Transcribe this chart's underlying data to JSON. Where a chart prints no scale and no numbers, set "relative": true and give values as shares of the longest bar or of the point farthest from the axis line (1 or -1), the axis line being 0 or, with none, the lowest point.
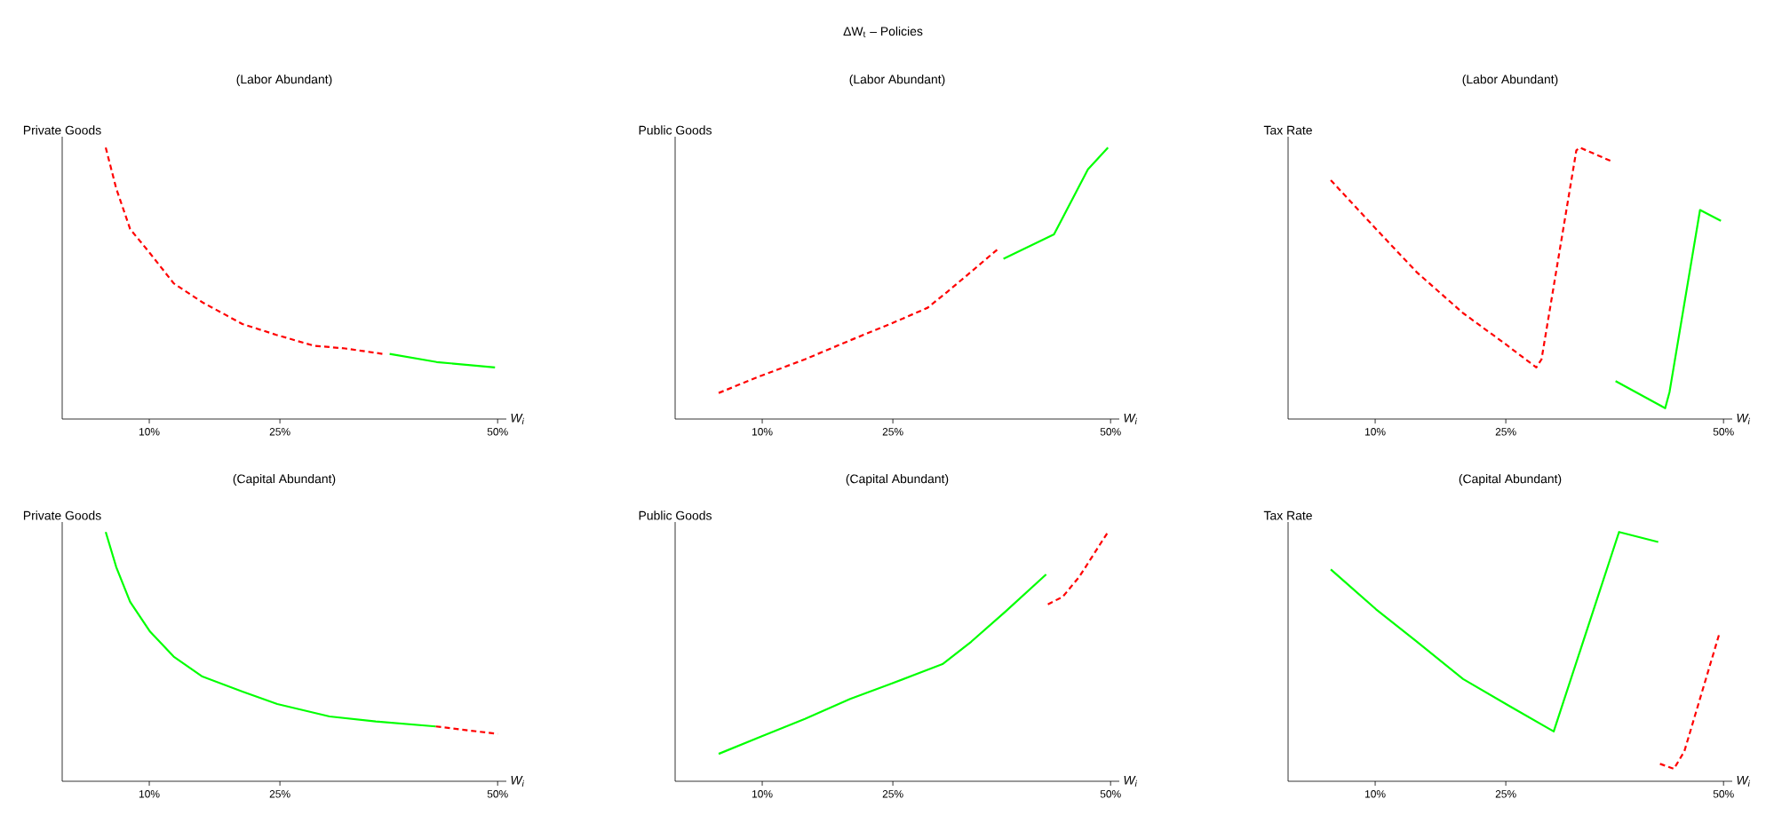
{
  "chart_data": [
    {
      "type": "line",
      "annotations": [
        "ΔW$_{t}$ – Policies"
      ],
      "title": "(Labor Abundant)",
      "ylabel": "Private Goods",
      "xlabel": "W$_{i}$",
      "relative": true,
      "xlim": [
        0,
        51
      ],
      "xticks": [
        {
          "value": 10,
          "label": "10%"
        },
        {
          "value": 25,
          "label": "25%"
        },
        {
          "value": 50,
          "label": "50%"
        }
      ],
      "series": [
        {
          "color": "#ff0000",
          "line_style": "dashed",
          "x": [
            5.0,
            6.2,
            7.8,
            10.1,
            12.8,
            16.1,
            20.7,
            24.6,
            28.9,
            32.5,
            36.8
          ],
          "values": [
            1.0,
            0.85,
            0.7,
            0.61,
            0.5,
            0.43,
            0.35,
            0.31,
            0.27,
            0.26,
            0.24
          ]
        },
        {
          "color": "#00ff00",
          "line_style": "solid",
          "x": [
            37.6,
            43.0,
            49.7
          ],
          "values": [
            0.24,
            0.21,
            0.19
          ]
        }
      ]
    },
    {
      "type": "line",
      "title": "(Labor Abundant)",
      "ylabel": "Public Goods",
      "xlabel": "W$_{i}$",
      "relative": true,
      "xlim": [
        0,
        51
      ],
      "xticks": [
        {
          "value": 10,
          "label": "10%"
        },
        {
          "value": 25,
          "label": "25%"
        },
        {
          "value": 50,
          "label": "50%"
        }
      ],
      "series": [
        {
          "color": "#ff0000",
          "line_style": "dashed",
          "x": [
            5.0,
            9.6,
            14.9,
            20.1,
            24.7,
            29.0,
            31.3,
            33.9,
            37.2
          ],
          "values": [
            0.096,
            0.156,
            0.22,
            0.29,
            0.35,
            0.41,
            0.47,
            0.54,
            0.63
          ]
        },
        {
          "color": "#00ff00",
          "line_style": "solid",
          "x": [
            37.7,
            43.5,
            47.4,
            49.7
          ],
          "values": [
            0.59,
            0.68,
            0.92,
            1.0
          ]
        }
      ]
    },
    {
      "type": "line",
      "title": "(Labor Abundant)",
      "ylabel": "Tax Rate",
      "xlabel": "W$_{i}$",
      "relative": true,
      "xlim": [
        0,
        51
      ],
      "xticks": [
        {
          "value": 10,
          "label": "10%"
        },
        {
          "value": 25,
          "label": "25%"
        },
        {
          "value": 50,
          "label": "50%"
        }
      ],
      "series": [
        {
          "color": "#ff0000",
          "line_style": "dashed",
          "x": [
            4.9,
            10.1,
            14.8,
            20.1,
            24.8,
            28.5,
            29.1,
            33.1,
            33.5,
            37.1
          ],
          "values": [
            0.88,
            0.7,
            0.54,
            0.39,
            0.28,
            0.19,
            0.22,
            0.99,
            1.0,
            0.95
          ]
        },
        {
          "color": "#00ff00",
          "line_style": "solid",
          "x": [
            37.6,
            43.3,
            43.8,
            47.3,
            49.7
          ],
          "values": [
            0.14,
            0.04,
            0.1,
            0.77,
            0.73
          ]
        }
      ]
    },
    {
      "type": "line",
      "title": "(Capital Abundant)",
      "ylabel": "Private Goods",
      "xlabel": "W$_{i}$",
      "relative": true,
      "xlim": [
        0,
        51
      ],
      "xticks": [
        {
          "value": 10,
          "label": "10%"
        },
        {
          "value": 25,
          "label": "25%"
        },
        {
          "value": 50,
          "label": "50%"
        }
      ],
      "series": [
        {
          "color": "#00ff00",
          "line_style": "solid",
          "x": [
            5.0,
            6.2,
            7.8,
            10.1,
            12.8,
            16.1,
            20.7,
            24.7,
            30.7,
            36.0,
            42.9
          ],
          "values": [
            1.0,
            0.86,
            0.72,
            0.6,
            0.5,
            0.42,
            0.36,
            0.31,
            0.26,
            0.24,
            0.22
          ]
        },
        {
          "color": "#ff0000",
          "line_style": "dashed",
          "x": [
            42.9,
            50.0
          ],
          "values": [
            0.22,
            0.19
          ]
        }
      ]
    },
    {
      "type": "line",
      "title": "(Capital Abundant)",
      "ylabel": "Public Goods",
      "xlabel": "W$_{i}$",
      "relative": true,
      "xlim": [
        0,
        51
      ],
      "xticks": [
        {
          "value": 10,
          "label": "10%"
        },
        {
          "value": 25,
          "label": "25%"
        },
        {
          "value": 50,
          "label": "50%"
        }
      ],
      "series": [
        {
          "color": "#00ff00",
          "line_style": "solid",
          "x": [
            5.0,
            9.9,
            14.9,
            20.1,
            24.7,
            30.7,
            34.0,
            37.9,
            42.6
          ],
          "values": [
            0.11,
            0.18,
            0.25,
            0.33,
            0.39,
            0.47,
            0.56,
            0.68,
            0.83
          ]
        },
        {
          "color": "#ff0000",
          "line_style": "dashed",
          "x": [
            42.8,
            44.5,
            46.4,
            49.7
          ],
          "values": [
            0.71,
            0.74,
            0.82,
            1.0
          ]
        }
      ]
    },
    {
      "type": "line",
      "title": "(Capital Abundant)",
      "ylabel": "Tax Rate",
      "xlabel": "W$_{i}$",
      "relative": true,
      "xlim": [
        0,
        51
      ],
      "xticks": [
        {
          "value": 10,
          "label": "10%"
        },
        {
          "value": 25,
          "label": "25%"
        },
        {
          "value": 50,
          "label": "50%"
        }
      ],
      "series": [
        {
          "color": "#00ff00",
          "line_style": "solid",
          "x": [
            4.9,
            10.1,
            14.8,
            20.1,
            25.5,
            30.5,
            38.0,
            42.5
          ],
          "values": [
            0.85,
            0.69,
            0.56,
            0.41,
            0.3,
            0.2,
            1.0,
            0.96
          ]
        },
        {
          "color": "#ff0000",
          "line_style": "dashed",
          "x": [
            42.7,
            44.3,
            45.5,
            49.5
          ],
          "values": [
            0.07,
            0.05,
            0.12,
            0.59
          ]
        }
      ]
    }
  ]
}
